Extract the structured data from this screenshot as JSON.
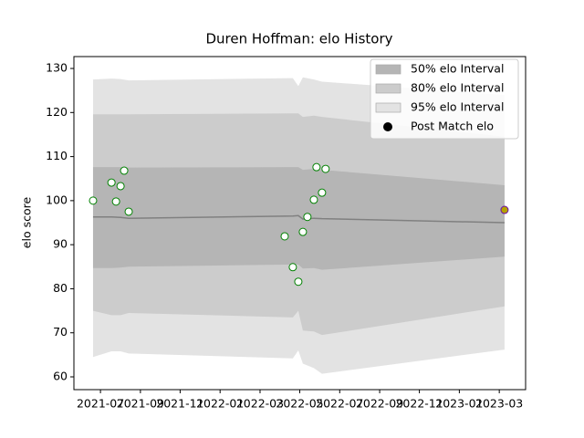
{
  "chart_data": {
    "type": "band",
    "title": "Duren Hoffman: elo History",
    "y_label": "elo score",
    "xlim": [
      2021.389,
      2023.277
    ],
    "ylim": [
      57.1,
      132.7
    ],
    "xticks": [
      {
        "value": 2021.5,
        "label": "2021-07"
      },
      {
        "value": 2021.667,
        "label": "2021-09"
      },
      {
        "value": 2021.833,
        "label": "2021-11"
      },
      {
        "value": 2022.0,
        "label": "2022-01"
      },
      {
        "value": 2022.167,
        "label": "2022-03"
      },
      {
        "value": 2022.333,
        "label": "2022-05"
      },
      {
        "value": 2022.5,
        "label": "2022-07"
      },
      {
        "value": 2022.667,
        "label": "2022-09"
      },
      {
        "value": 2022.833,
        "label": "2022-11"
      },
      {
        "value": 2023.0,
        "label": "2023-01"
      },
      {
        "value": 2023.167,
        "label": "2023-03"
      }
    ],
    "yticks": [
      60,
      70,
      80,
      90,
      100,
      110,
      120,
      130
    ],
    "x": [
      2021.469,
      2021.546,
      2021.584,
      2021.618,
      2022.304,
      2022.327,
      2022.346,
      2022.392,
      2022.426,
      2023.189
    ],
    "mean": [
      96.3,
      96.3,
      96.2,
      96.0,
      96.5,
      96.6,
      95.8,
      96.0,
      95.9,
      95.0
    ],
    "mean_color": "#808080",
    "bands": [
      {
        "name": "95% elo Interval",
        "color": "#e3e3e3",
        "lower": [
          64.5,
          65.8,
          65.8,
          65.3,
          64.2,
          66.0,
          63.0,
          62.0,
          60.7,
          66.2
        ],
        "upper": [
          127.5,
          127.7,
          127.6,
          127.3,
          127.8,
          126.0,
          128.0,
          127.5,
          127.0,
          124.0
        ]
      },
      {
        "name": "80% elo Interval",
        "color": "#cccccc",
        "lower": [
          75.0,
          74.0,
          74.0,
          74.5,
          73.5,
          75.0,
          70.5,
          70.3,
          69.5,
          76.0
        ],
        "upper": [
          119.6,
          119.6,
          119.6,
          119.6,
          119.8,
          119.8,
          119.0,
          119.3,
          119.0,
          114.5
        ]
      },
      {
        "name": "50% elo Interval",
        "color": "#b5b5b5",
        "lower": [
          84.7,
          84.7,
          84.8,
          85.0,
          85.5,
          85.5,
          84.6,
          84.7,
          84.3,
          87.3
        ],
        "upper": [
          107.6,
          107.6,
          107.6,
          107.5,
          107.6,
          107.6,
          107.0,
          107.2,
          107.0,
          103.5
        ]
      }
    ],
    "legend_order": [
      2,
      1,
      0
    ],
    "scatter": {
      "name": "Post Match elo",
      "color": "#ffffff",
      "edge_color": "#008000",
      "legend_color": "#000000",
      "last_point_color": "#b5a100",
      "last_point_edge": "#6a0dad",
      "x": [
        2021.469,
        2021.546,
        2021.565,
        2021.584,
        2021.599,
        2021.618,
        2022.27,
        2022.304,
        2022.327,
        2022.346,
        2022.365,
        2022.392,
        2022.403,
        2022.426,
        2022.441,
        2023.189
      ],
      "values": [
        100.0,
        104.1,
        99.8,
        103.3,
        106.8,
        97.5,
        91.9,
        84.9,
        81.6,
        92.9,
        96.3,
        100.2,
        107.6,
        101.8,
        107.2,
        97.9
      ]
    },
    "legend": "upper right"
  }
}
